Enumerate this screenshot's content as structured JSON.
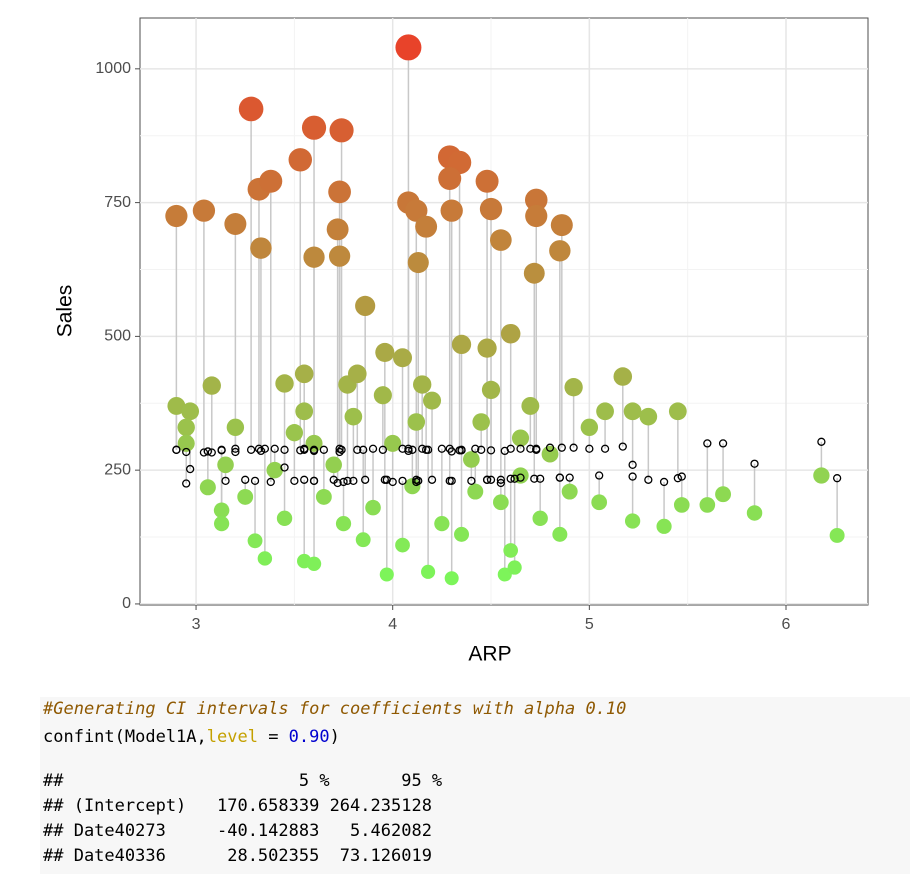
{
  "chart_data": {
    "type": "scatter",
    "x_label": "ARP",
    "y_label": "Sales",
    "xlim": [
      2.715,
      6.417
    ],
    "ylim": [
      -2,
      1095
    ],
    "xticks": [
      3,
      4,
      5,
      6
    ],
    "yticks": [
      0,
      250,
      500,
      750,
      1000
    ],
    "xminor": [
      3.5,
      4.5,
      5.5
    ],
    "yminor": [
      125,
      375,
      625,
      875
    ],
    "grid": true,
    "color_low": "#7cf55a",
    "color_high": "#e8432a",
    "fitted_color": "#000000",
    "segment_color": "#c8c8c8",
    "x": [
      2.9,
      3.04,
      3.2,
      3.28,
      3.32,
      3.38,
      3.33,
      3.53,
      3.6,
      3.6,
      3.74,
      3.73,
      3.72,
      3.73,
      3.86,
      4.08,
      4.08,
      4.12,
      4.17,
      4.13,
      4.29,
      4.34,
      4.29,
      4.3,
      4.48,
      4.5,
      4.55,
      4.73,
      4.73,
      4.72,
      4.86,
      4.85,
      2.9,
      2.97,
      3.08,
      2.95,
      3.06,
      3.13,
      3.13,
      3.3,
      3.35,
      3.55,
      3.6,
      3.45,
      3.55,
      3.77,
      3.82,
      3.96,
      4.05,
      4.35,
      4.48,
      4.6,
      4.92,
      3.97,
      4.18,
      4.3,
      4.57,
      4.62,
      5.08,
      5.17,
      5.22,
      5.3,
      5.45,
      5.22,
      5.38,
      5.47,
      5.6,
      5.68,
      5.84,
      6.18,
      6.26,
      3.4,
      3.5,
      3.65,
      3.8,
      3.9,
      4.0,
      4.1,
      4.2,
      4.25,
      4.4,
      4.45,
      4.55,
      4.65,
      4.75,
      4.8,
      4.9,
      5.0,
      5.05,
      3.25,
      3.45,
      3.7,
      3.85,
      4.05,
      4.35,
      4.6,
      3.95,
      4.15,
      4.5,
      3.2,
      3.6,
      4.7,
      4.85,
      3.55,
      4.12,
      4.42,
      3.75,
      4.65,
      2.95,
      3.15
    ],
    "values": [
      725,
      735,
      710,
      925,
      775,
      790,
      665,
      830,
      890,
      648,
      885,
      770,
      700,
      650,
      557,
      1040,
      750,
      735,
      705,
      638,
      835,
      825,
      795,
      735,
      790,
      738,
      680,
      755,
      725,
      618,
      708,
      660,
      370,
      360,
      408,
      330,
      218,
      175,
      150,
      118,
      85,
      80,
      75,
      412,
      430,
      410,
      430,
      470,
      460,
      485,
      478,
      505,
      405,
      55,
      60,
      48,
      55,
      68,
      360,
      425,
      360,
      350,
      360,
      155,
      145,
      185,
      185,
      205,
      170,
      240,
      128,
      250,
      320,
      200,
      350,
      180,
      300,
      220,
      380,
      150,
      270,
      340,
      190,
      310,
      160,
      280,
      210,
      330,
      190,
      200,
      160,
      260,
      120,
      110,
      130,
      100,
      390,
      410,
      400,
      330,
      300,
      370,
      130,
      360,
      340,
      210,
      150,
      240,
      300,
      260
    ],
    "fitted": [
      288,
      283,
      284,
      288,
      290,
      228,
      286,
      287,
      286,
      230,
      288,
      290,
      226,
      284,
      232,
      290,
      286,
      228,
      288,
      230,
      290,
      287,
      230,
      285,
      232,
      287,
      226,
      290,
      288,
      234,
      292,
      236,
      288,
      252,
      283,
      225,
      285,
      288,
      287,
      230,
      290,
      232,
      288,
      255,
      290,
      230,
      288,
      232,
      290,
      287,
      232,
      290,
      292,
      232,
      288,
      230,
      286,
      234,
      290,
      294,
      260,
      232,
      235,
      238,
      228,
      238,
      300,
      300,
      262,
      303,
      235,
      290,
      230,
      288,
      230,
      290,
      228,
      288,
      232,
      290,
      230,
      288,
      232,
      290,
      234,
      292,
      236,
      290,
      240,
      232,
      288,
      232,
      288,
      230,
      288,
      234,
      288,
      290,
      232,
      290,
      230,
      290,
      236,
      288,
      232,
      290,
      228,
      236,
      284,
      230
    ]
  },
  "code": {
    "comment": "#Generating CI intervals for coefficients with alpha 0.10",
    "tokens": [
      "confint(Model1A,",
      "level",
      " = ",
      "0.90",
      ")"
    ]
  },
  "output": [
    "##                       5 %       95 %",
    "## (Intercept)   170.658339 264.235128",
    "## Date40273     -40.142883   5.462082",
    "## Date40336      28.502355  73.126019"
  ]
}
